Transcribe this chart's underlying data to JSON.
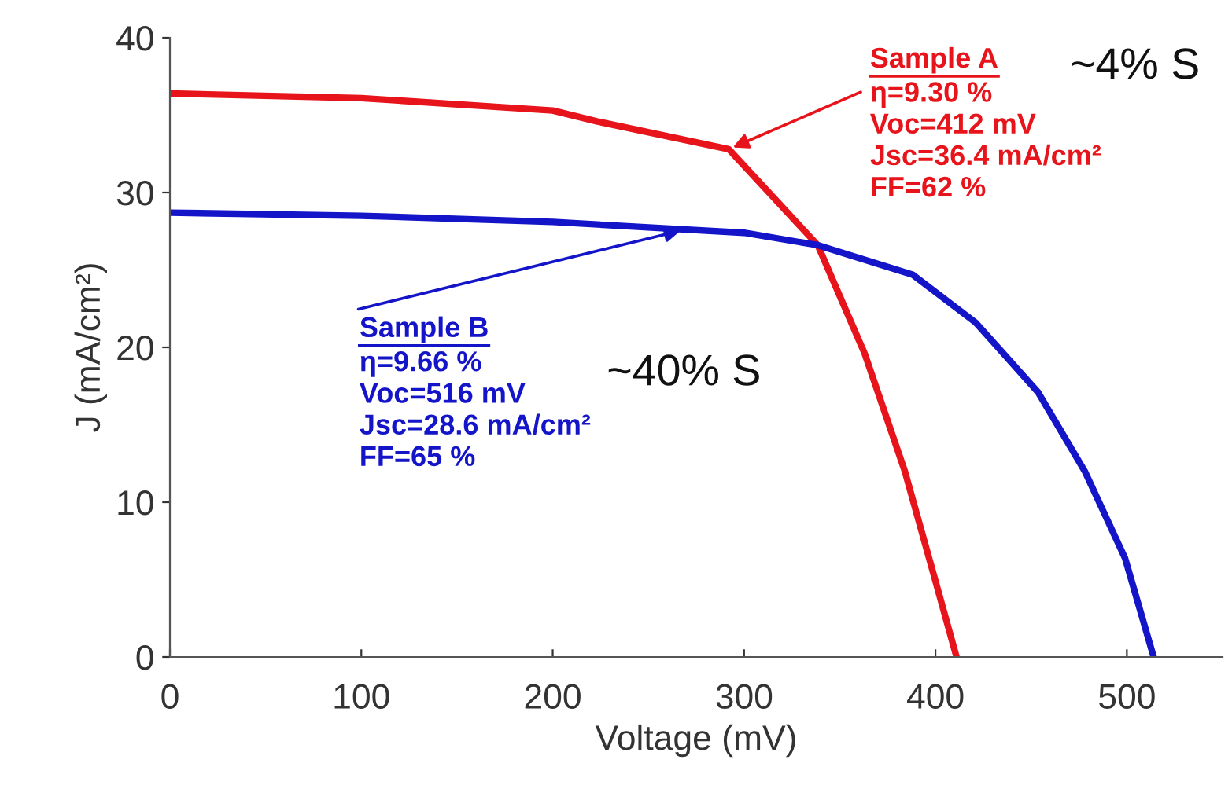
{
  "chart_data": {
    "type": "line",
    "xlabel": "Voltage (mV)",
    "ylabel": "J (mA/cm²)",
    "xlim": [
      0,
      550
    ],
    "xticks": [
      0,
      100,
      200,
      300,
      400,
      500
    ],
    "ylim": [
      0,
      40
    ],
    "yticks": [
      0,
      10,
      20,
      30,
      40
    ],
    "grid": false,
    "legend": false,
    "marker": "none",
    "line_style": "solid",
    "series": [
      {
        "color": "#e8141b",
        "x": [
          0,
          100,
          200,
          223,
          292,
          338.5,
          363,
          384,
          400,
          411
        ],
        "values": [
          36.4,
          36.1,
          35.3,
          34.6,
          32.8,
          26.6,
          19.6,
          12.0,
          4.9,
          0
        ]
      },
      {
        "color": "#1414c8",
        "x": [
          0,
          100,
          200,
          300,
          338.5,
          388,
          421,
          453.6,
          478,
          499,
          514
        ],
        "values": [
          28.7,
          28.5,
          28.1,
          27.4,
          26.6,
          24.7,
          21.6,
          17.1,
          12.0,
          6.4,
          0
        ]
      }
    ],
    "annotations": [
      {
        "text": "Sample A\nη=9.30 %\nVoc=412 mV\nJsc=36.4 mA/cm²\nFF=62 %",
        "x": 292,
        "y": 32.8
      },
      {
        "text": "Sample B\nη=9.66 %\nVoc=516 mV\nJsc=28.6 mA/cm²\nFF=65 %",
        "x": 269,
        "y": 27.6
      },
      "~4% S",
      "~40% S"
    ]
  }
}
